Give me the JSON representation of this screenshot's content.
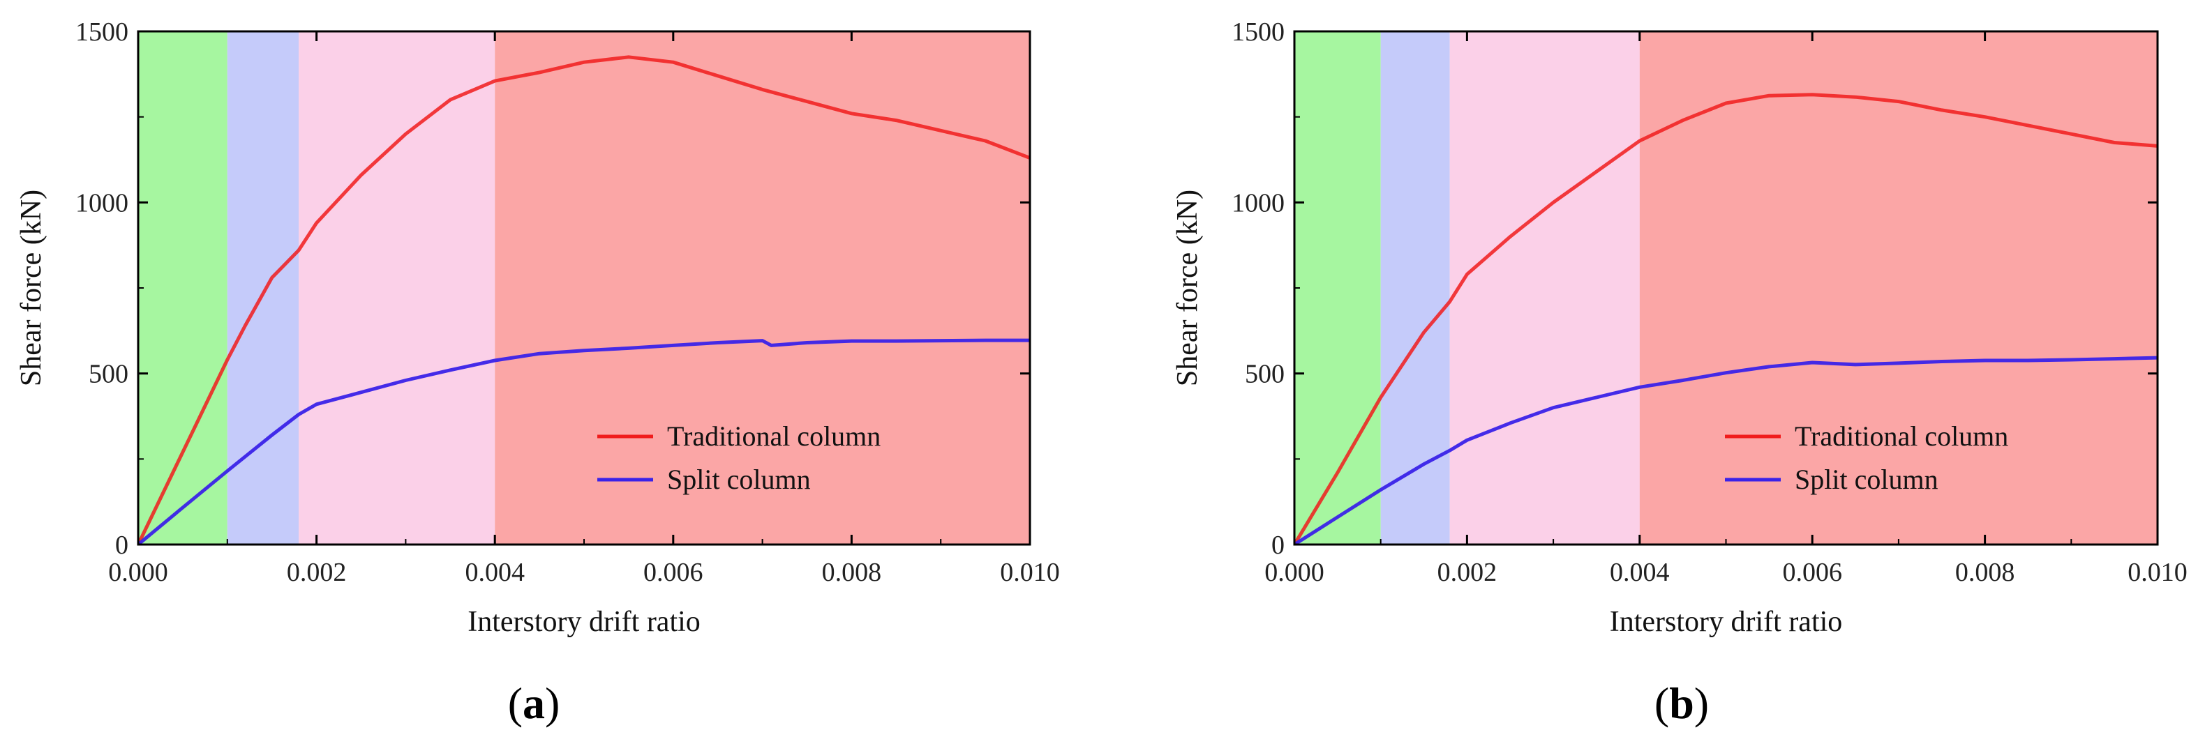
{
  "colors": {
    "zone_elastic": "#a6f6a0",
    "zone_yield": "#c5cbfa",
    "zone_plastic": "#fbd0e8",
    "zone_failure": "#fba6a6",
    "traditional": "#f01c1c",
    "split": "#3a22e8",
    "axis": "#000000"
  },
  "chart_data": [
    {
      "panel_label": "a",
      "type": "line",
      "xlabel": "Interstory drift ratio",
      "ylabel": "Shear force (kN)",
      "xlim": [
        0,
        0.01
      ],
      "ylim": [
        0,
        1500
      ],
      "xticks": [
        "0.000",
        "0.002",
        "0.004",
        "0.006",
        "0.008",
        "0.010"
      ],
      "xtick_values": [
        0,
        0.002,
        0.004,
        0.006,
        0.008,
        0.01
      ],
      "yticks": [
        "0",
        "500",
        "1000",
        "1500"
      ],
      "ytick_values": [
        0,
        500,
        1000,
        1500
      ],
      "zones": [
        {
          "from": 0,
          "to": 0.001,
          "color": "zone_elastic"
        },
        {
          "from": 0.001,
          "to": 0.0018,
          "color": "zone_yield"
        },
        {
          "from": 0.0018,
          "to": 0.004,
          "color": "zone_plastic"
        },
        {
          "from": 0.004,
          "to": 0.01,
          "color": "zone_failure"
        }
      ],
      "legend_position": "bottom-right",
      "series": [
        {
          "name": "Traditional column",
          "color": "traditional",
          "x": [
            0,
            0.0005,
            0.001,
            0.0012,
            0.0015,
            0.0018,
            0.002,
            0.0025,
            0.003,
            0.0035,
            0.004,
            0.0045,
            0.005,
            0.0055,
            0.006,
            0.0065,
            0.007,
            0.0075,
            0.008,
            0.0085,
            0.009,
            0.0095,
            0.01
          ],
          "y": [
            0,
            270,
            540,
            640,
            780,
            860,
            940,
            1080,
            1200,
            1300,
            1355,
            1380,
            1410,
            1425,
            1410,
            1370,
            1330,
            1295,
            1260,
            1240,
            1210,
            1180,
            1130
          ]
        },
        {
          "name": "Split column",
          "color": "split",
          "x": [
            0,
            0.0005,
            0.001,
            0.0015,
            0.0018,
            0.002,
            0.0025,
            0.003,
            0.0035,
            0.004,
            0.0045,
            0.005,
            0.0055,
            0.006,
            0.0065,
            0.007,
            0.0071,
            0.0075,
            0.008,
            0.0085,
            0.009,
            0.0095,
            0.01
          ],
          "y": [
            0,
            108,
            215,
            320,
            380,
            410,
            445,
            480,
            510,
            538,
            558,
            567,
            574,
            582,
            590,
            596,
            582,
            590,
            595,
            595,
            596,
            597,
            597
          ]
        }
      ]
    },
    {
      "panel_label": "b",
      "type": "line",
      "xlabel": "Interstory drift ratio",
      "ylabel": "Shear force (kN)",
      "xlim": [
        0,
        0.01
      ],
      "ylim": [
        0,
        1500
      ],
      "xticks": [
        "0.000",
        "0.002",
        "0.004",
        "0.006",
        "0.008",
        "0.010"
      ],
      "xtick_values": [
        0,
        0.002,
        0.004,
        0.006,
        0.008,
        0.01
      ],
      "yticks": [
        "0",
        "500",
        "1000",
        "1500"
      ],
      "ytick_values": [
        0,
        500,
        1000,
        1500
      ],
      "zones": [
        {
          "from": 0,
          "to": 0.001,
          "color": "zone_elastic"
        },
        {
          "from": 0.001,
          "to": 0.0018,
          "color": "zone_yield"
        },
        {
          "from": 0.0018,
          "to": 0.004,
          "color": "zone_plastic"
        },
        {
          "from": 0.004,
          "to": 0.01,
          "color": "zone_failure"
        }
      ],
      "legend_position": "bottom-right",
      "series": [
        {
          "name": "Traditional column",
          "color": "traditional",
          "x": [
            0,
            0.0005,
            0.001,
            0.0015,
            0.0018,
            0.002,
            0.0025,
            0.003,
            0.0035,
            0.004,
            0.0045,
            0.005,
            0.0055,
            0.006,
            0.0065,
            0.007,
            0.0075,
            0.008,
            0.0085,
            0.009,
            0.0095,
            0.01
          ],
          "y": [
            0,
            210,
            430,
            620,
            710,
            790,
            900,
            1000,
            1090,
            1180,
            1240,
            1290,
            1312,
            1315,
            1308,
            1295,
            1270,
            1250,
            1225,
            1200,
            1175,
            1165
          ]
        },
        {
          "name": "Split column",
          "color": "split",
          "x": [
            0,
            0.0005,
            0.001,
            0.0015,
            0.0018,
            0.002,
            0.0025,
            0.003,
            0.0035,
            0.004,
            0.0045,
            0.005,
            0.0055,
            0.006,
            0.0065,
            0.007,
            0.0075,
            0.008,
            0.0085,
            0.009,
            0.0095,
            0.01
          ],
          "y": [
            0,
            80,
            160,
            235,
            275,
            305,
            355,
            400,
            430,
            460,
            480,
            502,
            520,
            532,
            526,
            530,
            535,
            538,
            538,
            540,
            543,
            546
          ]
        }
      ]
    }
  ]
}
